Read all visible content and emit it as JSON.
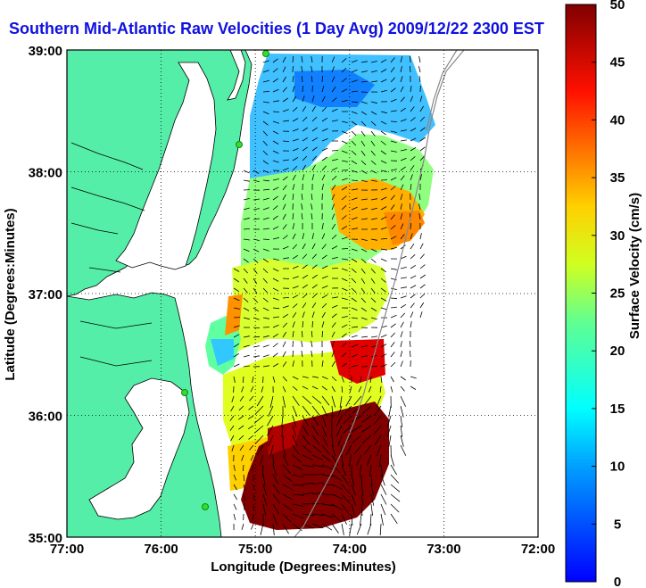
{
  "title": "Southern Mid-Atlantic Raw Velocities (1 Day Avg) 2009/12/22 2300 EST",
  "map": {
    "xlabel": "Longitude (Degrees:Minutes)",
    "ylabel": "Latitude (Degrees:Minutes)",
    "lon_range": [
      -77,
      -72
    ],
    "lat_range": [
      35,
      39
    ],
    "x_ticks": [
      "77:00",
      "76:00",
      "75:00",
      "74:00",
      "73:00",
      "72:00"
    ],
    "y_ticks": [
      "39:00",
      "38:00",
      "37:00",
      "36:00",
      "35:00"
    ],
    "grid": "dotted",
    "land_color": "#55eea8",
    "water_color": "#ffffff"
  },
  "colorbar": {
    "label": "Surface Velocity (cm/s)",
    "min": 0,
    "max": 50,
    "ticks": [
      "0",
      "5",
      "10",
      "15",
      "20",
      "25",
      "30",
      "35",
      "40",
      "45",
      "50"
    ],
    "colormap": "jet"
  }
}
